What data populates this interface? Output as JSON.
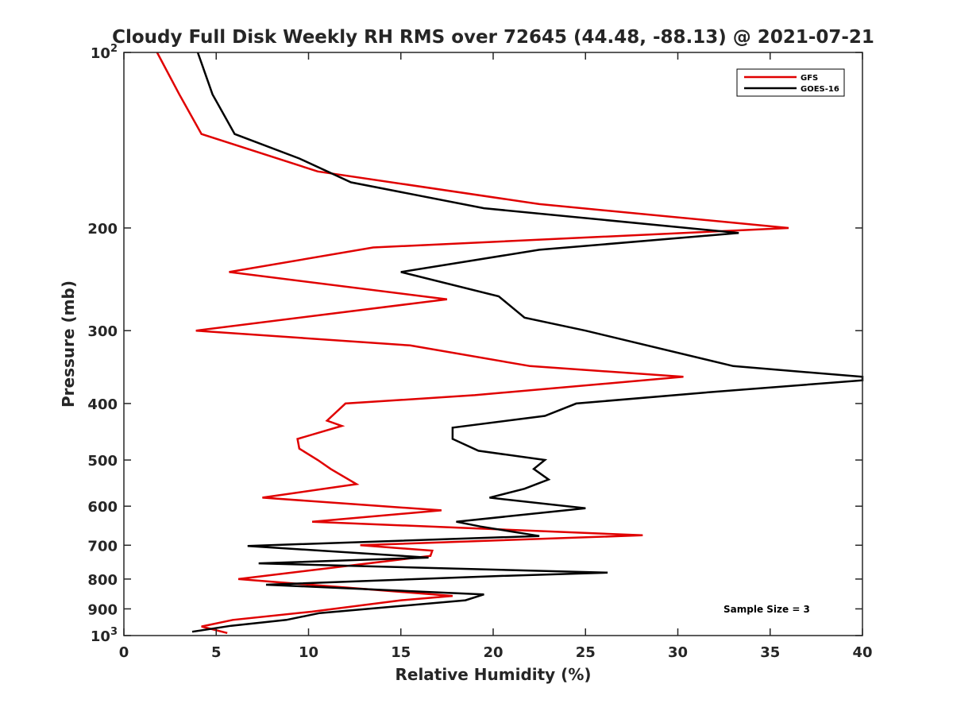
{
  "chart_data": {
    "type": "line",
    "title": "Cloudy Full Disk Weekly RH RMS over 72645 (44.48, -88.13) @ 2021-07-21",
    "xlabel": "Relative Humidity (%)",
    "ylabel": "Pressure (mb)",
    "xlim": [
      0,
      40
    ],
    "ylim": [
      100,
      1000
    ],
    "yscale": "log",
    "y_reversed": true,
    "grid": false,
    "legend_position": "top-right",
    "x_ticks": [
      "0",
      "5",
      "10",
      "15",
      "20",
      "25",
      "30",
      "35",
      "40"
    ],
    "x_tick_values": [
      0,
      5,
      10,
      15,
      20,
      25,
      30,
      35,
      40
    ],
    "y_ticks": [
      {
        "value": 100,
        "base": "10",
        "exp": "2"
      },
      {
        "value": 200,
        "label": "200"
      },
      {
        "value": 300,
        "label": "300"
      },
      {
        "value": 400,
        "label": "400"
      },
      {
        "value": 500,
        "label": "500"
      },
      {
        "value": 600,
        "label": "600"
      },
      {
        "value": 700,
        "label": "700"
      },
      {
        "value": 800,
        "label": "800"
      },
      {
        "value": 900,
        "label": "900"
      },
      {
        "value": 1000,
        "base": "10",
        "exp": "3"
      }
    ],
    "annotation": "Sample Size = 3",
    "series": [
      {
        "name": "GFS",
        "color": "#e00000",
        "points": [
          [
            1.8,
            100
          ],
          [
            3.0,
            118
          ],
          [
            4.2,
            138
          ],
          [
            10.5,
            160
          ],
          [
            22.5,
            182
          ],
          [
            36.0,
            200
          ],
          [
            13.5,
            216
          ],
          [
            5.7,
            238
          ],
          [
            17.5,
            265
          ],
          [
            3.9,
            300
          ],
          [
            15.5,
            318
          ],
          [
            22.0,
            345
          ],
          [
            30.3,
            360
          ],
          [
            19.0,
            387
          ],
          [
            12.0,
            400
          ],
          [
            11.0,
            428
          ],
          [
            11.8,
            437
          ],
          [
            9.4,
            460
          ],
          [
            9.5,
            478
          ],
          [
            10.5,
            500
          ],
          [
            11.2,
            518
          ],
          [
            12.6,
            550
          ],
          [
            7.5,
            580
          ],
          [
            17.2,
            610
          ],
          [
            10.2,
            638
          ],
          [
            28.1,
            673
          ],
          [
            12.8,
            700
          ],
          [
            16.7,
            715
          ],
          [
            16.6,
            730
          ],
          [
            6.2,
            800
          ],
          [
            17.8,
            855
          ],
          [
            15.0,
            870
          ],
          [
            10.2,
            910
          ],
          [
            5.9,
            940
          ],
          [
            4.2,
            965
          ],
          [
            5.6,
            990
          ]
        ]
      },
      {
        "name": "GOES-16",
        "color": "#000000",
        "points": [
          [
            4.0,
            100
          ],
          [
            4.8,
            118
          ],
          [
            6.0,
            138
          ],
          [
            9.5,
            152
          ],
          [
            12.3,
            167
          ],
          [
            19.5,
            185
          ],
          [
            33.3,
            204
          ],
          [
            22.5,
            218
          ],
          [
            15.0,
            238
          ],
          [
            20.3,
            262
          ],
          [
            21.7,
            285
          ],
          [
            25.0,
            300
          ],
          [
            33.0,
            345
          ],
          [
            40.0,
            360
          ],
          [
            40.0,
            365
          ],
          [
            31.5,
            383
          ],
          [
            24.5,
            400
          ],
          [
            22.8,
            420
          ],
          [
            17.8,
            440
          ],
          [
            17.8,
            460
          ],
          [
            19.2,
            482
          ],
          [
            22.8,
            500
          ],
          [
            22.2,
            518
          ],
          [
            23.0,
            540
          ],
          [
            21.7,
            560
          ],
          [
            19.8,
            580
          ],
          [
            25.0,
            605
          ],
          [
            18.0,
            638
          ],
          [
            19.3,
            650
          ],
          [
            22.5,
            675
          ],
          [
            6.7,
            702
          ],
          [
            16.5,
            735
          ],
          [
            7.3,
            752
          ],
          [
            26.2,
            780
          ],
          [
            20.5,
            790
          ],
          [
            7.7,
            818
          ],
          [
            19.5,
            850
          ],
          [
            18.5,
            870
          ],
          [
            10.6,
            915
          ],
          [
            8.8,
            940
          ],
          [
            5.8,
            962
          ],
          [
            3.7,
            985
          ]
        ]
      }
    ]
  }
}
